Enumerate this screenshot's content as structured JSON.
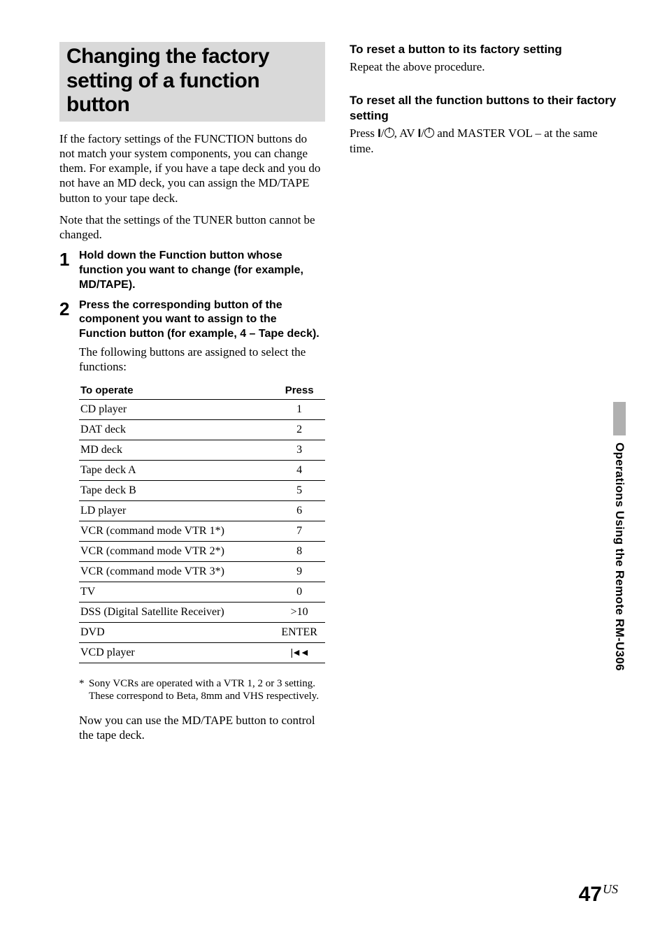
{
  "title": "Changing the factory setting of a function button",
  "intro1": "If the factory settings of the FUNCTION buttons do not match your system components, you can change them. For example, if you have a tape deck and you do not have an MD deck, you can assign the MD/TAPE button to your tape deck.",
  "intro2": "Note that the settings of the TUNER button cannot be changed.",
  "step1": "Hold down the Function button whose function you want to change (for example, MD/TAPE).",
  "step2": "Press the corresponding button of the component you want to assign to the Function button (for example, 4 – Tape deck).",
  "step2_after": "The following buttons are assigned to select the functions:",
  "table": {
    "head_left": "To operate",
    "head_right": "Press",
    "rows": [
      {
        "l": "CD player",
        "r": "1"
      },
      {
        "l": "DAT deck",
        "r": "2"
      },
      {
        "l": "MD deck",
        "r": "3"
      },
      {
        "l": "Tape deck A",
        "r": "4"
      },
      {
        "l": "Tape deck B",
        "r": "5"
      },
      {
        "l": "LD player",
        "r": "6"
      },
      {
        "l": "VCR (command mode VTR 1*)",
        "r": "7"
      },
      {
        "l": "VCR (command mode VTR 2*)",
        "r": "8"
      },
      {
        "l": "VCR (command mode VTR 3*)",
        "r": "9"
      },
      {
        "l": "TV",
        "r": "0"
      },
      {
        "l": "DSS (Digital Satellite Receiver)",
        "r": ">10"
      },
      {
        "l": "DVD",
        "r": "ENTER"
      },
      {
        "l": "VCD player",
        "r": "PREV_ICON"
      }
    ]
  },
  "footnote": "Sony VCRs are operated with a VTR 1, 2 or 3 setting. These correspond to Beta, 8mm and VHS respectively.",
  "closing": "Now you can use the MD/TAPE button to control the tape deck.",
  "right": {
    "h1": "To reset a button to its factory setting",
    "p1": "Repeat the above procedure.",
    "h2": "To reset all the function buttons to their factory setting",
    "p2_pre": "Press ",
    "p2_mid": ", AV ",
    "p2_post": " and MASTER VOL – at the same time."
  },
  "side_text": "Operations Using the Remote RM-U306",
  "page_number": "47",
  "page_suffix": "US",
  "colors": {
    "title_bg": "#d9d9d9",
    "side_grey": "#b0b0b0",
    "text": "#000000",
    "bg": "#ffffff"
  }
}
